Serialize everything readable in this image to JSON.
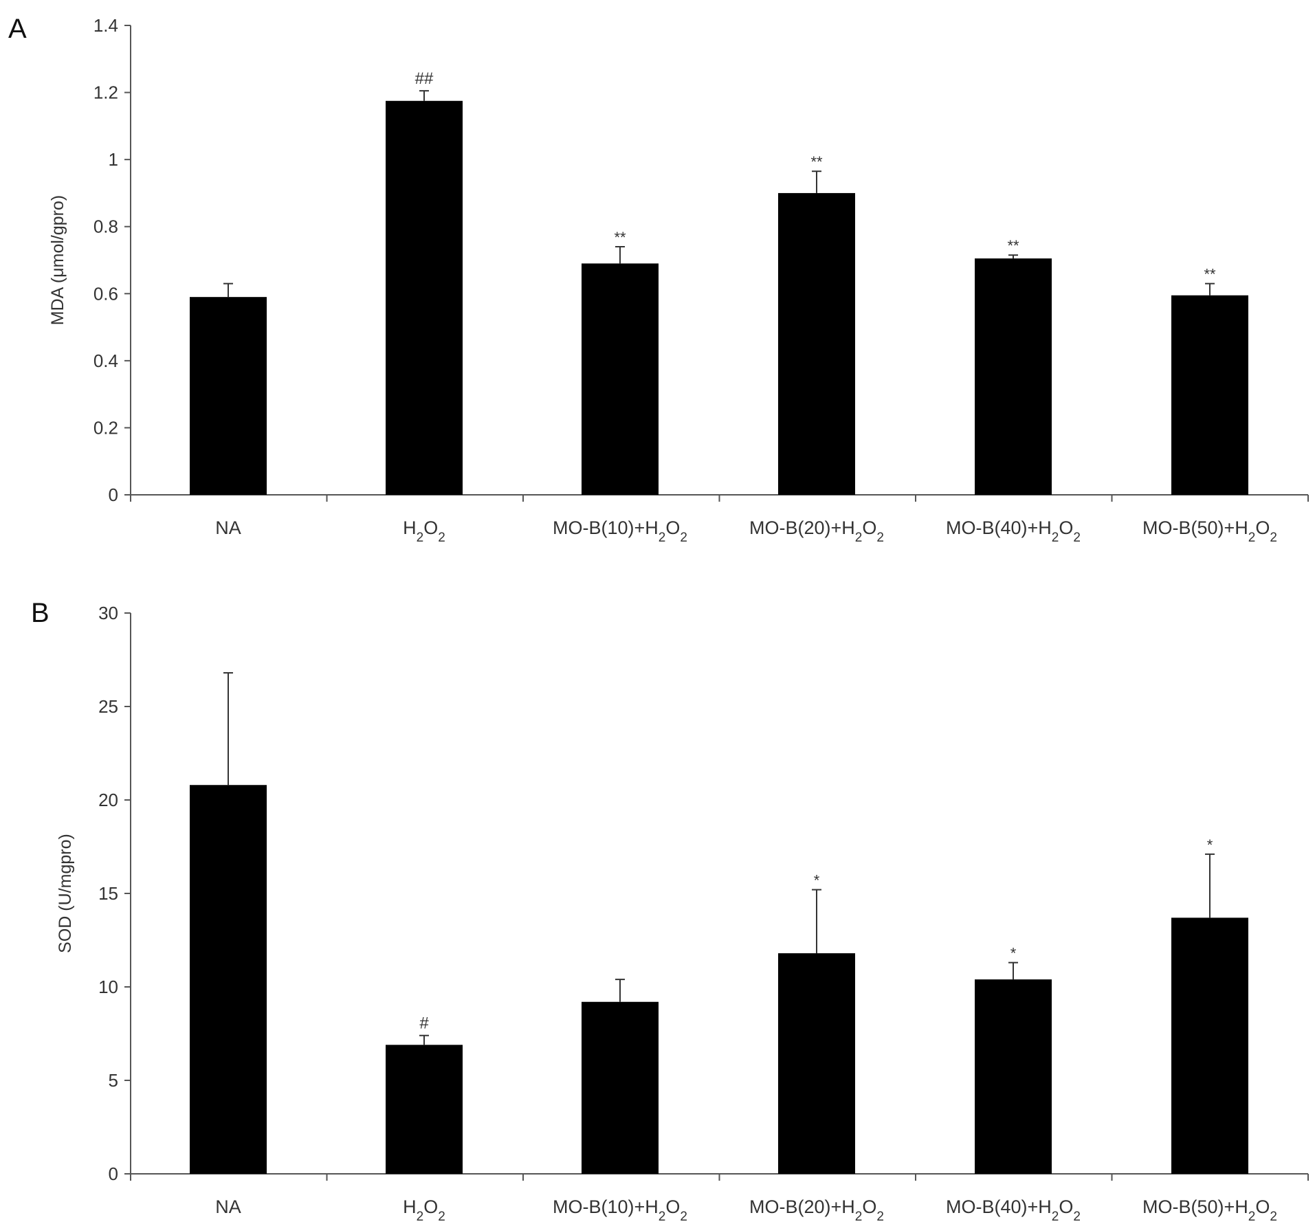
{
  "chart_data": [
    {
      "type": "bar",
      "panel": "A",
      "ylabel": "MDA (μmol/gpro)",
      "xlabel": "",
      "ylim": [
        0,
        1.4
      ],
      "yticks": [
        "0",
        "0.2",
        "0.4",
        "0.6",
        "0.8",
        "1",
        "1.2",
        "1.4"
      ],
      "categories": [
        {
          "base": "NA",
          "sub": ""
        },
        {
          "base": "H",
          "sub": "2",
          "mid": "O",
          "sub2": "2"
        },
        {
          "base": "MO-B(10)+H",
          "sub": "2",
          "mid": "O",
          "sub2": "2"
        },
        {
          "base": "MO-B(20)+H",
          "sub": "2",
          "mid": "O",
          "sub2": "2"
        },
        {
          "base": "MO-B(40)+H",
          "sub": "2",
          "mid": "O",
          "sub2": "2"
        },
        {
          "base": "MO-B(50)+H",
          "sub": "2",
          "mid": "O",
          "sub2": "2"
        }
      ],
      "values": [
        0.59,
        1.175,
        0.69,
        0.9,
        0.705,
        0.595
      ],
      "errors": [
        0.04,
        0.03,
        0.05,
        0.065,
        0.01,
        0.035
      ],
      "significance": [
        "",
        "##",
        "**",
        "**",
        "**",
        "**"
      ],
      "grid": false,
      "bar_color": "#000000"
    },
    {
      "type": "bar",
      "panel": "B",
      "ylabel": "SOD (U/mgpro)",
      "xlabel": "",
      "ylim": [
        0,
        30
      ],
      "yticks": [
        "0",
        "5",
        "10",
        "15",
        "20",
        "25",
        "30"
      ],
      "categories": [
        {
          "base": "NA",
          "sub": ""
        },
        {
          "base": "H",
          "sub": "2",
          "mid": "O",
          "sub2": "2"
        },
        {
          "base": "MO-B(10)+H",
          "sub": "2",
          "mid": "O",
          "sub2": "2"
        },
        {
          "base": "MO-B(20)+H",
          "sub": "2",
          "mid": "O",
          "sub2": "2"
        },
        {
          "base": "MO-B(40)+H",
          "sub": "2",
          "mid": "O",
          "sub2": "2"
        },
        {
          "base": "MO-B(50)+H",
          "sub": "2",
          "mid": "O",
          "sub2": "2"
        }
      ],
      "values": [
        20.8,
        6.9,
        9.2,
        11.8,
        10.4,
        13.7
      ],
      "errors": [
        6.0,
        0.5,
        1.2,
        3.4,
        0.9,
        3.4
      ],
      "significance": [
        "",
        "#",
        "",
        "*",
        "*",
        "*"
      ],
      "grid": false,
      "bar_color": "#000000"
    }
  ]
}
